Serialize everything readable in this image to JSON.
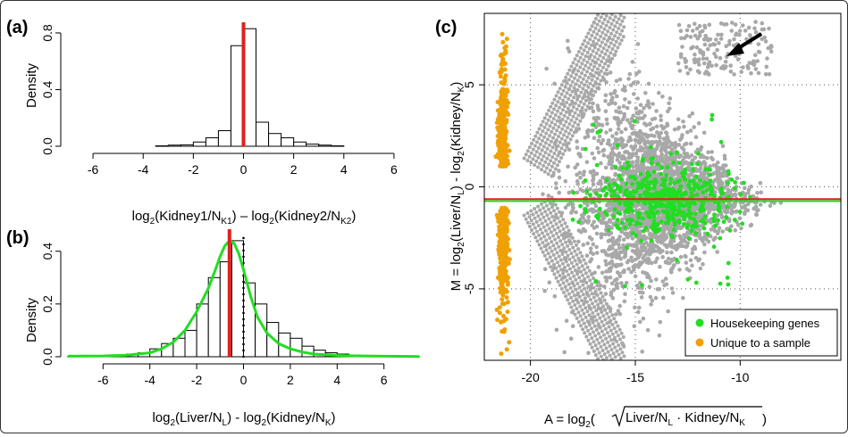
{
  "chart_data": [
    {
      "panel": "(a)",
      "type": "bar",
      "ylabel": "Density",
      "xlabel_parts": [
        "log",
        "2",
        "(Kidney1/N",
        "K1",
        ") – log",
        "2",
        "(Kidney2/N",
        "K2",
        ")"
      ],
      "xlim": [
        -7,
        7
      ],
      "ylim": [
        0,
        0.85
      ],
      "xticks": [
        "-6",
        "-4",
        "-2",
        "0",
        "2",
        "4",
        "6"
      ],
      "yticks": [
        "0.0",
        "0.4",
        "0.8"
      ],
      "bins": [
        {
          "x0": -3.5,
          "x1": -3.0,
          "v": 0.003
        },
        {
          "x0": -3.0,
          "x1": -2.5,
          "v": 0.008
        },
        {
          "x0": -2.5,
          "x1": -2.0,
          "v": 0.01
        },
        {
          "x0": -2.0,
          "x1": -1.5,
          "v": 0.03
        },
        {
          "x0": -1.5,
          "x1": -1.0,
          "v": 0.06
        },
        {
          "x0": -1.0,
          "x1": -0.5,
          "v": 0.11
        },
        {
          "x0": -0.5,
          "x1": 0.0,
          "v": 0.71
        },
        {
          "x0": 0.0,
          "x1": 0.5,
          "v": 0.83
        },
        {
          "x0": 0.5,
          "x1": 1.0,
          "v": 0.17
        },
        {
          "x0": 1.0,
          "x1": 1.5,
          "v": 0.09
        },
        {
          "x0": 1.5,
          "x1": 2.0,
          "v": 0.06
        },
        {
          "x0": 2.0,
          "x1": 2.5,
          "v": 0.03
        },
        {
          "x0": 2.5,
          "x1": 3.0,
          "v": 0.015
        },
        {
          "x0": 3.0,
          "x1": 3.5,
          "v": 0.008
        },
        {
          "x0": 3.5,
          "x1": 4.0,
          "v": 0.003
        }
      ],
      "red_line_x": 0
    },
    {
      "panel": "(b)",
      "type": "bar",
      "ylabel": "Density",
      "xlabel_parts": [
        "log",
        "2",
        "(Liver/N",
        "L",
        ") - log",
        "2",
        "(Kidney/N",
        "K",
        ")"
      ],
      "xlim": [
        -7.5,
        7.5
      ],
      "ylim": [
        0,
        0.47
      ],
      "xticks": [
        "-6",
        "-4",
        "-2",
        "0",
        "2",
        "4",
        "6"
      ],
      "yticks": [
        "0.0",
        "0.2",
        "0.4"
      ],
      "bins": [
        {
          "x0": -7.5,
          "x1": -7.0,
          "v": 0.002
        },
        {
          "x0": -7.0,
          "x1": -6.5,
          "v": 0.002
        },
        {
          "x0": -6.5,
          "x1": -6.0,
          "v": 0.003
        },
        {
          "x0": -6.0,
          "x1": -5.5,
          "v": 0.004
        },
        {
          "x0": -5.5,
          "x1": -5.0,
          "v": 0.006
        },
        {
          "x0": -5.0,
          "x1": -4.5,
          "v": 0.01
        },
        {
          "x0": -4.5,
          "x1": -4.0,
          "v": 0.015
        },
        {
          "x0": -4.0,
          "x1": -3.5,
          "v": 0.03
        },
        {
          "x0": -3.5,
          "x1": -3.0,
          "v": 0.05
        },
        {
          "x0": -3.0,
          "x1": -2.5,
          "v": 0.07
        },
        {
          "x0": -2.5,
          "x1": -2.0,
          "v": 0.1
        },
        {
          "x0": -2.0,
          "x1": -1.5,
          "v": 0.2
        },
        {
          "x0": -1.5,
          "x1": -1.0,
          "v": 0.3
        },
        {
          "x0": -1.0,
          "x1": -0.5,
          "v": 0.36
        },
        {
          "x0": -0.5,
          "x1": 0.0,
          "v": 0.44
        },
        {
          "x0": 0.0,
          "x1": 0.5,
          "v": 0.28
        },
        {
          "x0": 0.5,
          "x1": 1.0,
          "v": 0.2
        },
        {
          "x0": 1.0,
          "x1": 1.5,
          "v": 0.13
        },
        {
          "x0": 1.5,
          "x1": 2.0,
          "v": 0.09
        },
        {
          "x0": 2.0,
          "x1": 2.5,
          "v": 0.07
        },
        {
          "x0": 2.5,
          "x1": 3.0,
          "v": 0.04
        },
        {
          "x0": 3.0,
          "x1": 3.5,
          "v": 0.025
        },
        {
          "x0": 3.5,
          "x1": 4.0,
          "v": 0.015
        },
        {
          "x0": 4.0,
          "x1": 4.5,
          "v": 0.01
        },
        {
          "x0": 4.5,
          "x1": 5.0,
          "v": 0.006
        },
        {
          "x0": 5.0,
          "x1": 5.5,
          "v": 0.004
        },
        {
          "x0": 5.5,
          "x1": 6.0,
          "v": 0.003
        },
        {
          "x0": 6.0,
          "x1": 6.5,
          "v": 0.002
        },
        {
          "x0": 6.5,
          "x1": 7.0,
          "v": 0.002
        },
        {
          "x0": 7.0,
          "x1": 7.5,
          "v": 0.001
        }
      ],
      "density_curve": {
        "color": "#22dd22",
        "x": [
          -7.5,
          -6,
          -5,
          -4,
          -3.5,
          -3,
          -2.5,
          -2,
          -1.5,
          -1.2,
          -1,
          -0.8,
          -0.6,
          -0.4,
          -0.2,
          0,
          0.3,
          0.6,
          1,
          1.5,
          2,
          2.5,
          3,
          4,
          5,
          6,
          7.5
        ],
        "y": [
          0.002,
          0.003,
          0.006,
          0.015,
          0.03,
          0.055,
          0.1,
          0.17,
          0.26,
          0.33,
          0.38,
          0.42,
          0.44,
          0.43,
          0.39,
          0.33,
          0.23,
          0.15,
          0.09,
          0.05,
          0.03,
          0.018,
          0.01,
          0.005,
          0.003,
          0.002,
          0.001
        ]
      },
      "red_line_x": -0.6,
      "dotted_vline_x": 0
    },
    {
      "panel": "(c)",
      "type": "scatter",
      "ylabel_parts": [
        "M = log",
        "2",
        "(Liver/N",
        "L",
        ") - log",
        "2",
        "(Kidney/N",
        "K",
        ")"
      ],
      "xlabel_prefix": "A = log",
      "xlabel_inner": "Liver/N",
      "xlabel_inner_sub": "L",
      "xlabel_inner_mid": " · Kidney/N",
      "xlabel_inner_sub2": "K",
      "xlim": [
        -22.2,
        -5.2
      ],
      "ylim": [
        -8.5,
        8.5
      ],
      "xticks": [
        "-20",
        "-15",
        "-10"
      ],
      "yticks": [
        "-5",
        "0",
        "5"
      ],
      "grid": "dotted at x = -20, -15, -10 and y = -5, 0, 5",
      "legend": {
        "placement": "bottom-right",
        "items": [
          {
            "label": "Housekeeping genes",
            "color": "#22dd22"
          },
          {
            "label": "Unique to a sample",
            "color": "#f0a000"
          }
        ]
      },
      "colors": {
        "all_genes": "#a8a8a8",
        "housekeeping": "#22dd22",
        "unique": "#f0a000",
        "median_line_red": "#e02020",
        "median_line_green": "#22dd22"
      },
      "median_lines": {
        "red_y": -0.6,
        "green_y": -0.7
      },
      "annotation": "arrow pointing to upper-right gene cloud"
    }
  ]
}
